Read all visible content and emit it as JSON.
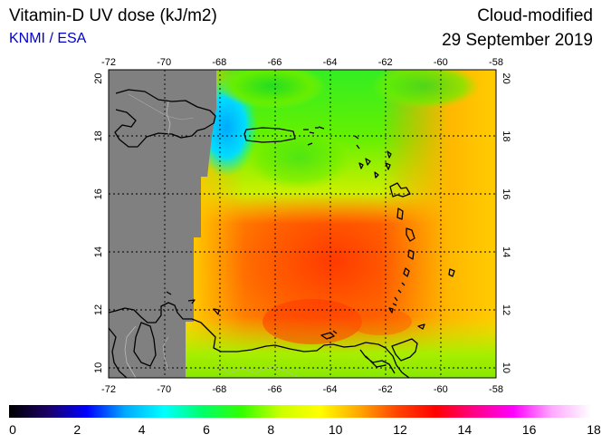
{
  "header": {
    "title": "Vitamin-D UV dose (kJ/m2)",
    "credit": "KNMI / ESA",
    "product": "Cloud-modified",
    "date": "29 September 2019"
  },
  "map": {
    "lon_ticks": [
      "-72",
      "-70",
      "-68",
      "-66",
      "-64",
      "-62",
      "-60",
      "-58"
    ],
    "lat_ticks": [
      "10",
      "12",
      "14",
      "16",
      "18",
      "20"
    ],
    "no_data_color": "#808080",
    "land_outline_color": "#000000"
  },
  "colorbar": {
    "labels": [
      "0",
      "2",
      "4",
      "6",
      "8",
      "10",
      "12",
      "14",
      "16",
      "18"
    ],
    "stops": [
      "#000000",
      "#1a0066",
      "#0000ff",
      "#00aaff",
      "#00ffff",
      "#00ff66",
      "#33ff00",
      "#ccff00",
      "#ffff00",
      "#ffaa00",
      "#ff4400",
      "#ff0000",
      "#ff0088",
      "#ff00ff",
      "#ffaaff",
      "#ffffff"
    ]
  }
}
